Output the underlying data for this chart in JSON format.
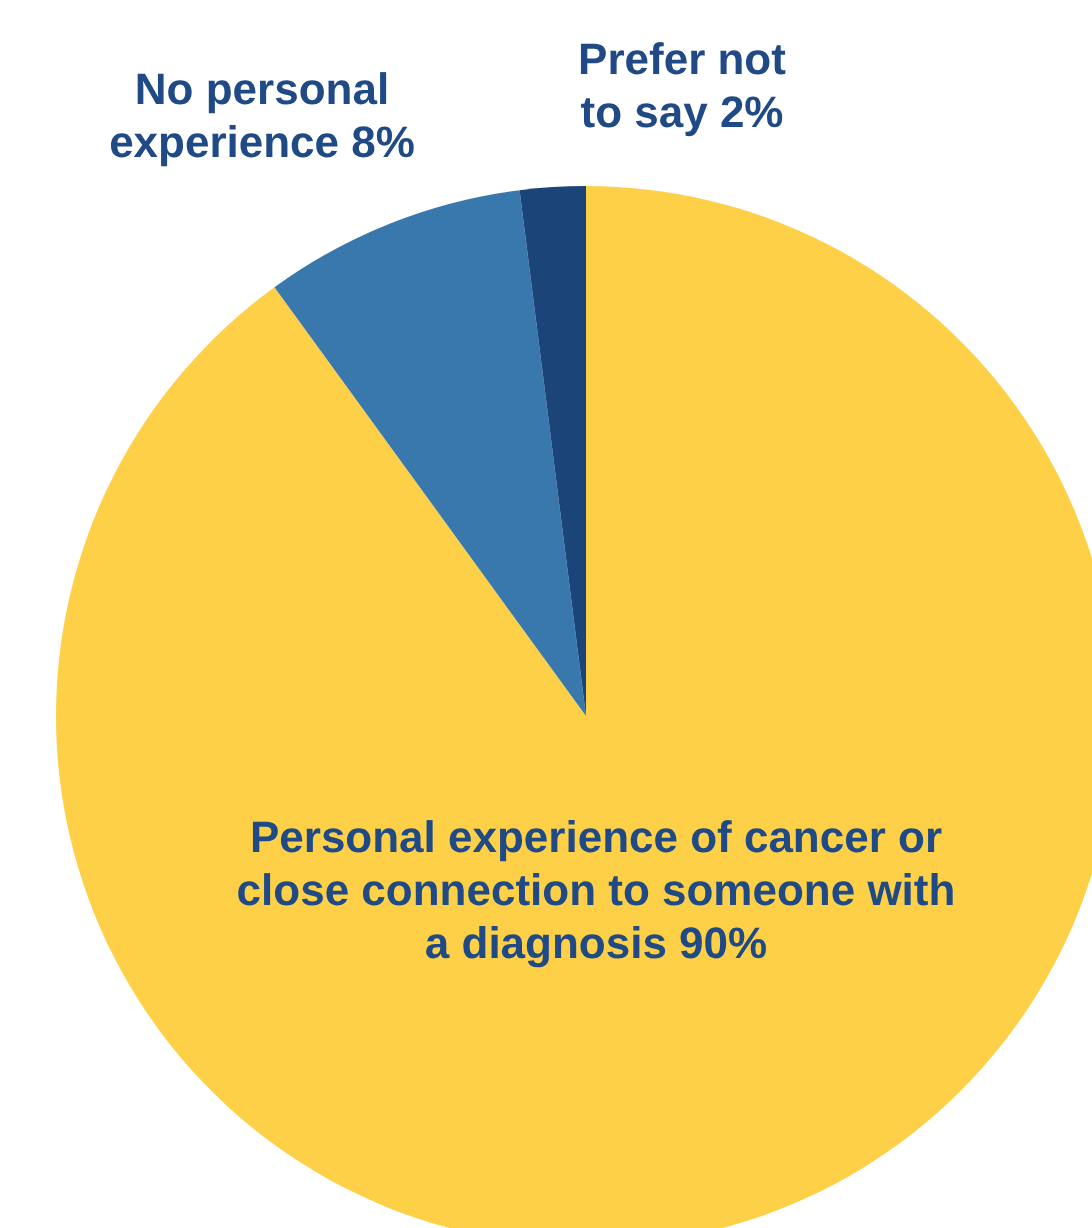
{
  "chart_data": {
    "type": "pie",
    "categories": [
      "Personal experience of cancer or close connection to someone with a diagnosis",
      "No personal experience",
      "Prefer not to say"
    ],
    "values": [
      90,
      8,
      2
    ],
    "value_labels": [
      "90%",
      "8%",
      "2%"
    ],
    "colors": [
      "#fdd048",
      "#3878ad",
      "#1b4479"
    ]
  }
}
